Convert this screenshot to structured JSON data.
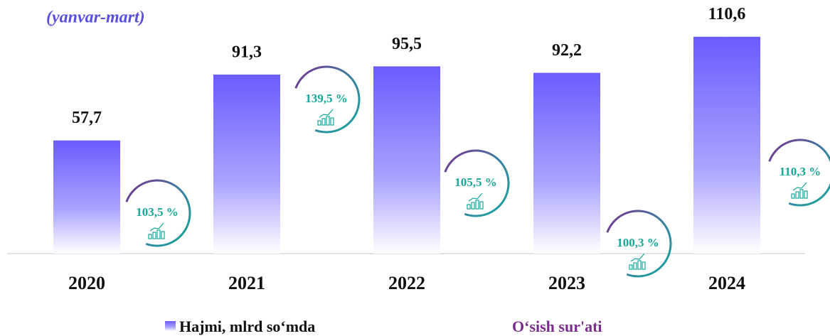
{
  "chart_data": {
    "type": "bar",
    "subtitle": "(yanvar-mart)",
    "categories": [
      "2020",
      "2021",
      "2022",
      "2023",
      "2024"
    ],
    "series": [
      {
        "name": "Hajmi, mlrd so‘mda",
        "color": "#6a5cff",
        "values": [
          57.7,
          91.3,
          95.5,
          92.2,
          110.6
        ],
        "value_labels": [
          "57,7",
          "91,3",
          "95,5",
          "92,2",
          "110,6"
        ]
      },
      {
        "name": "O‘sish sur'ati",
        "color": "#7b2d8e",
        "values": [
          103.5,
          139.5,
          105.5,
          100.3,
          110.3
        ],
        "value_labels": [
          "103,5 %",
          "139,5 %",
          "105,5 %",
          "100,3 %",
          "110,3 %"
        ]
      }
    ]
  }
}
